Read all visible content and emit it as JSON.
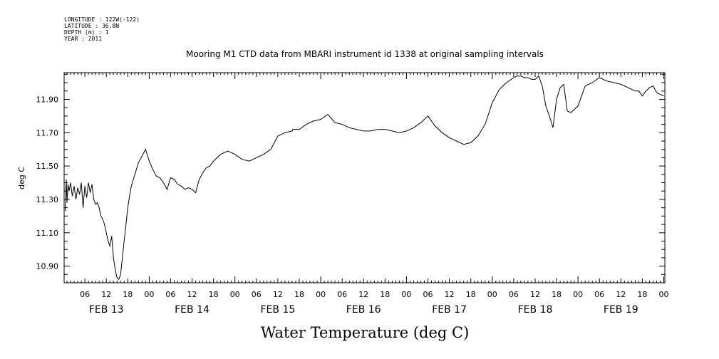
{
  "header": {
    "lines": [
      "LONGITUDE : 122W(-122)",
      "LATITUDE : 36.8N",
      "DEPTH (m) : 1",
      "YEAR : 2011"
    ]
  },
  "chart_data": {
    "type": "line",
    "title": "Mooring M1 CTD data from MBARI instrument id 1338 at original sampling intervals",
    "xlabel": "Water Temperature (deg C)",
    "ylabel": "deg C",
    "ylim": [
      10.8,
      12.06
    ],
    "y_ticks": [
      "10.90",
      "11.10",
      "11.30",
      "11.50",
      "11.70",
      "11.90"
    ],
    "x_tick_labels": [
      "06",
      "12",
      "18",
      "00",
      "06",
      "12",
      "18",
      "00",
      "06",
      "12",
      "18",
      "00",
      "06",
      "12",
      "18",
      "00",
      "06",
      "12",
      "18",
      "00",
      "06",
      "12",
      "18",
      "00",
      "06",
      "12",
      "18",
      "00"
    ],
    "day_labels": [
      "FEB 13",
      "FEB 14",
      "FEB 15",
      "FEB 16",
      "FEB 17",
      "FEB 18",
      "FEB 19"
    ],
    "xlim_hours_from_feb13_00": [
      0.2,
      168.3
    ],
    "series": [
      {
        "x_hours_from_feb13_00": [
          0.5,
          0.8,
          1.0,
          1.3,
          1.6,
          2.0,
          2.5,
          3.0,
          3.5,
          4.0,
          4.5,
          5.0,
          5.5,
          6.0,
          6.5,
          7.0,
          7.5,
          8.0,
          8.5,
          9.0,
          9.5,
          10.0,
          10.5,
          11.0,
          11.5,
          12.0,
          12.5,
          13.0,
          13.5,
          14.0,
          14.5,
          15.0,
          15.5,
          16.0,
          16.5,
          17.0,
          17.5,
          18.0,
          18.5,
          19.0,
          20.0,
          21.0,
          22.0,
          23.0,
          24.0,
          25.0,
          26.0,
          27.0,
          28.0,
          29.0,
          30.0,
          31.0,
          32.0,
          33.0,
          34.0,
          35.0,
          36.0,
          37.0,
          38.0,
          39.0,
          40.0,
          41.0,
          42.0,
          44.0,
          46.0,
          48.0,
          50.0,
          52.0,
          54.0,
          56.0,
          58.0,
          60.0,
          62.0,
          64.0,
          64.2,
          66.0,
          68.0,
          70.0,
          72.0,
          74.0,
          76.0,
          78.0,
          80.0,
          82.0,
          84.0,
          86.0,
          88.0,
          90.0,
          92.0,
          94.0,
          96.0,
          98.0,
          100.0,
          102.0,
          104.0,
          106.0,
          108.0,
          110.0,
          112.0,
          114.0,
          116.0,
          118.0,
          120.0,
          122.0,
          124.0,
          126.0,
          127.0,
          128.0,
          129.0,
          130.0,
          131.0,
          132.0,
          133.0,
          134.0,
          135.0,
          136.0,
          137.0,
          138.0,
          139.0,
          140.0,
          141.0,
          142.0,
          144.0,
          146.0,
          148.0,
          150.0,
          152.0,
          154.0,
          156.0,
          158.0,
          160.0,
          161.0,
          162.0,
          163.0,
          164.0,
          165.0,
          166.0,
          167.0,
          168.0
        ],
        "values": [
          11.23,
          11.42,
          11.28,
          11.39,
          11.35,
          11.4,
          11.32,
          11.38,
          11.3,
          11.37,
          11.33,
          11.4,
          11.25,
          11.38,
          11.31,
          11.4,
          11.34,
          11.39,
          11.3,
          11.27,
          11.28,
          11.25,
          11.2,
          11.18,
          11.15,
          11.1,
          11.05,
          11.02,
          11.08,
          10.95,
          10.88,
          10.83,
          10.82,
          10.85,
          10.95,
          11.05,
          11.15,
          11.25,
          11.32,
          11.38,
          11.45,
          11.52,
          11.56,
          11.6,
          11.53,
          11.48,
          11.44,
          11.43,
          11.4,
          11.36,
          11.43,
          11.42,
          11.39,
          11.38,
          11.36,
          11.37,
          11.36,
          11.34,
          11.42,
          11.46,
          11.49,
          11.5,
          11.53,
          11.57,
          11.59,
          11.57,
          11.54,
          11.53,
          11.55,
          11.57,
          11.6,
          11.68,
          11.7,
          11.71,
          11.72,
          11.72,
          11.75,
          11.77,
          11.78,
          11.81,
          11.76,
          11.75,
          11.73,
          11.72,
          11.71,
          11.71,
          11.72,
          11.72,
          11.71,
          11.7,
          11.71,
          11.73,
          11.76,
          11.8,
          11.74,
          11.7,
          11.67,
          11.65,
          11.63,
          11.64,
          11.68,
          11.75,
          11.88,
          11.96,
          12.0,
          12.03,
          12.04,
          12.04,
          12.03,
          12.03,
          12.02,
          12.02,
          12.04,
          11.98,
          11.86,
          11.8,
          11.73,
          11.9,
          11.97,
          11.99,
          11.83,
          11.82,
          11.86,
          11.98,
          12.0,
          12.03,
          12.01,
          12.0,
          11.99,
          11.97,
          11.95,
          11.95,
          11.92,
          11.95,
          11.97,
          11.98,
          11.94,
          11.93,
          11.92,
          11.9
        ]
      }
    ]
  }
}
